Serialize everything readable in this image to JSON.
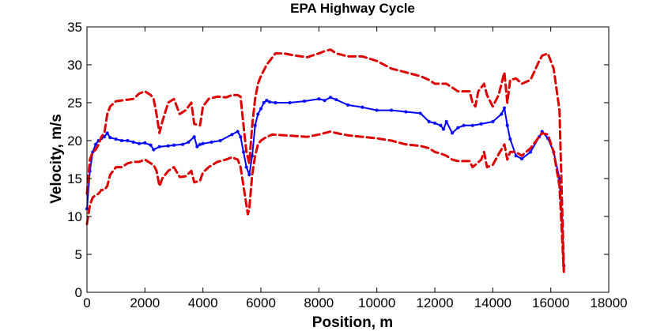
{
  "chart_data": {
    "type": "line",
    "title": "EPA Highway Cycle",
    "xlabel": "Position, m",
    "ylabel": "Velocity, m/s",
    "xlim": [
      0,
      18000
    ],
    "ylim": [
      0,
      35
    ],
    "xticks": [
      0,
      2000,
      4000,
      6000,
      8000,
      10000,
      12000,
      14000,
      16000,
      18000
    ],
    "yticks": [
      0,
      5,
      10,
      15,
      20,
      25,
      30,
      35
    ],
    "grid": false,
    "series": [
      {
        "style": "solid-with-star-markers",
        "color": "#0000ff",
        "x": [
          0,
          100,
          200,
          300,
          400,
          500,
          600,
          700,
          800,
          1000,
          1200,
          1400,
          1600,
          1800,
          2000,
          2200,
          2300,
          2500,
          2800,
          3000,
          3300,
          3500,
          3700,
          3800,
          3900,
          4000,
          4300,
          4600,
          5000,
          5200,
          5300,
          5400,
          5500,
          5600,
          5700,
          5800,
          5900,
          6000,
          6100,
          6200,
          6300,
          6500,
          7000,
          7500,
          8000,
          8200,
          8400,
          8600,
          9000,
          9500,
          10000,
          10500,
          11000,
          11500,
          11800,
          12000,
          12200,
          12300,
          12400,
          12600,
          12800,
          13000,
          13300,
          13600,
          14000,
          14300,
          14400,
          14500,
          14600,
          14800,
          15000,
          15300,
          15600,
          15700,
          15900,
          16100,
          16300,
          16400,
          16450
        ],
        "y": [
          11,
          16,
          18.5,
          19.5,
          20,
          20.3,
          20.5,
          21,
          20.4,
          20.2,
          20,
          20,
          19.8,
          19.6,
          19.7,
          19.4,
          18.8,
          19.2,
          19.3,
          19.4,
          19.5,
          19.8,
          20.5,
          19.2,
          19.5,
          19.6,
          19.8,
          20,
          20.8,
          21.2,
          20.5,
          18.5,
          16.5,
          15.5,
          18,
          22,
          23.5,
          24.2,
          25,
          25.3,
          25.1,
          25,
          25,
          25.2,
          25.5,
          25.3,
          25.7,
          25.4,
          24.7,
          24.4,
          24,
          24,
          23.8,
          23.6,
          22.5,
          22.3,
          22,
          21.5,
          22.5,
          21,
          21.7,
          22,
          22,
          22.2,
          22.5,
          23.5,
          24.3,
          22,
          20.2,
          18,
          17.6,
          18.5,
          20.5,
          21.2,
          20.3,
          18.5,
          15,
          9,
          3.5
        ]
      },
      {
        "style": "dashed",
        "color": "#dd0000",
        "x": [
          0,
          100,
          200,
          300,
          400,
          500,
          600,
          700,
          800,
          1000,
          1200,
          1400,
          1600,
          1800,
          2000,
          2200,
          2300,
          2400,
          2500,
          2600,
          2800,
          3000,
          3200,
          3400,
          3600,
          3700,
          3900,
          4000,
          4200,
          4500,
          4800,
          5000,
          5200,
          5300,
          5400,
          5500,
          5600,
          5700,
          5800,
          5900,
          6000,
          6200,
          6400,
          6500,
          6800,
          7200,
          7600,
          8000,
          8200,
          8400,
          8600,
          9000,
          9500,
          10000,
          10500,
          11000,
          11500,
          11800,
          12000,
          12200,
          12400,
          12600,
          12800,
          13000,
          13200,
          13300,
          13400,
          13500,
          13700,
          13800,
          14000,
          14200,
          14400,
          14500,
          14600,
          14800,
          15000,
          15300,
          15600,
          15700,
          15900,
          16100,
          16300,
          16450
        ],
        "y": [
          13,
          17.5,
          18.5,
          18.8,
          19.5,
          20.5,
          21,
          23.5,
          24.5,
          25.2,
          25.3,
          25.4,
          25.5,
          26.2,
          26.5,
          26,
          25.5,
          23.5,
          21,
          22.5,
          25,
          25.5,
          23.5,
          24,
          25,
          22.2,
          22,
          24.5,
          25.5,
          25.8,
          25.7,
          26,
          26,
          25.8,
          22,
          18.5,
          17,
          22,
          25.5,
          27.5,
          28.5,
          30,
          31,
          31.5,
          31.5,
          31.2,
          31,
          31.5,
          31.8,
          32,
          31.5,
          31.1,
          31.1,
          30.5,
          29.5,
          29,
          28.5,
          28,
          27.5,
          27.5,
          27.5,
          27,
          26.5,
          26.5,
          26.5,
          25,
          24.5,
          26.5,
          27.5,
          26,
          24.5,
          26,
          29,
          25,
          28,
          28.2,
          27.5,
          28,
          30.5,
          31.2,
          31.5,
          29.5,
          24,
          3
        ]
      },
      {
        "style": "dashed",
        "color": "#dd0000",
        "x": [
          0,
          100,
          200,
          300,
          400,
          500,
          600,
          700,
          800,
          1000,
          1200,
          1400,
          1600,
          1800,
          2000,
          2200,
          2300,
          2400,
          2500,
          2600,
          2800,
          3000,
          3200,
          3400,
          3600,
          3700,
          3900,
          4000,
          4200,
          4500,
          4800,
          5000,
          5200,
          5300,
          5400,
          5500,
          5550,
          5600,
          5700,
          5800,
          5900,
          6000,
          6200,
          6400,
          6800,
          7200,
          7600,
          8000,
          8200,
          8400,
          8600,
          9000,
          9500,
          10000,
          10500,
          11000,
          11500,
          11800,
          12000,
          12200,
          12400,
          12600,
          12800,
          13000,
          13200,
          13300,
          13400,
          13600,
          13700,
          13800,
          14000,
          14200,
          14400,
          14500,
          14600,
          14800,
          15000,
          15300,
          15600,
          15700,
          15900,
          16100,
          16300,
          16450
        ],
        "y": [
          9,
          11.5,
          12.5,
          12.8,
          13,
          13.5,
          13.5,
          14,
          15.5,
          16.5,
          16.5,
          17,
          17.2,
          17.2,
          17.5,
          17,
          16.8,
          16,
          14,
          15,
          16,
          16.5,
          15.2,
          15.3,
          16,
          14.5,
          14.7,
          15.8,
          16.5,
          17.2,
          17.5,
          17.8,
          17.5,
          16.5,
          14,
          11.5,
          10.3,
          11,
          15.5,
          18,
          19.5,
          20,
          20.5,
          20.8,
          20.7,
          20.6,
          20.5,
          20.8,
          21,
          21.2,
          21,
          20.7,
          20.5,
          20.3,
          20,
          19.5,
          19.3,
          19,
          18.5,
          18.3,
          18,
          17.5,
          17.3,
          17.3,
          17.3,
          16.5,
          16.8,
          17.5,
          18.5,
          16.5,
          16.8,
          18.2,
          19.5,
          17.5,
          18.5,
          18.5,
          18,
          19,
          20.5,
          21,
          20.8,
          18.5,
          14,
          2.7
        ]
      }
    ]
  }
}
